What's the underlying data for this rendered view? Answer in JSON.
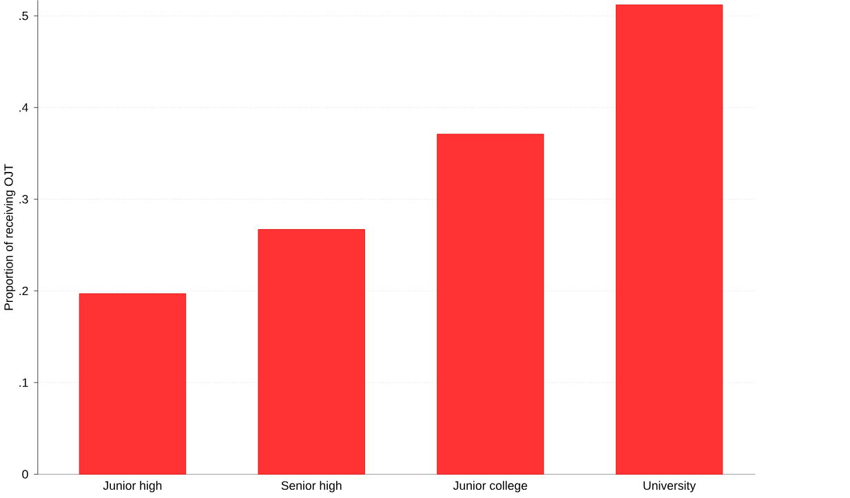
{
  "chart_data": {
    "type": "bar",
    "ylabel": "Proportion of receiving OJT",
    "categories": [
      "Junior high",
      "Senior high",
      "Junior college",
      "University"
    ],
    "values": [
      0.197,
      0.267,
      0.371,
      0.512
    ],
    "color": "#ff3333",
    "ylim": [
      0,
      0.517
    ],
    "yticks": [
      0,
      {
        "value": 0.1,
        "label": ".1"
      },
      {
        "value": 0.2,
        "label": ".2"
      },
      {
        "value": 0.3,
        "label": ".3"
      },
      {
        "value": 0.4,
        "label": ".4"
      },
      {
        "value": 0.5,
        "label": ".5"
      }
    ],
    "grid": "y"
  }
}
